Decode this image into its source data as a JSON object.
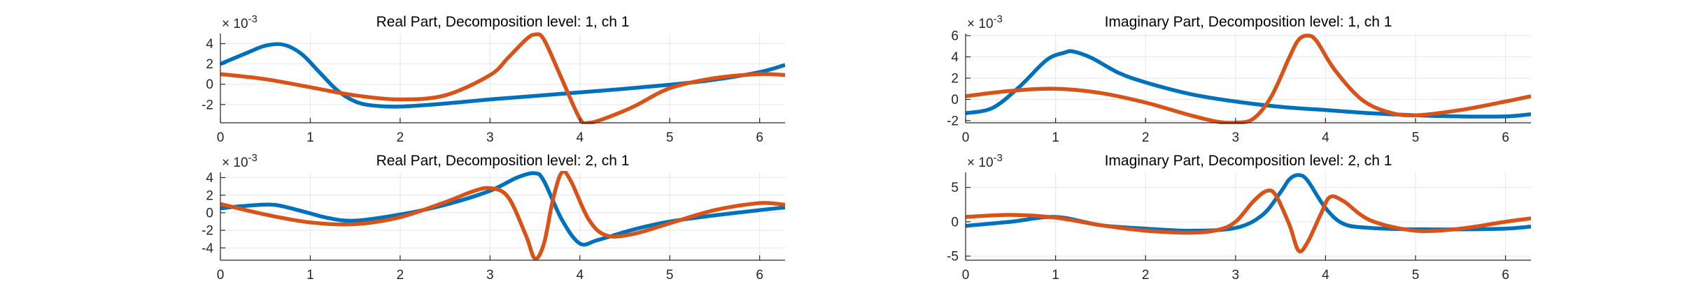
{
  "colors": {
    "series1": "#0072BD",
    "series2": "#D95319",
    "axis": "#262626",
    "grid": "#e6e6e6",
    "background": "#ffffff"
  },
  "chart_data": [
    {
      "type": "line",
      "title": "Real Part, Decomposition level: 1, ch 1",
      "exponent_label": "× 10",
      "exponent_power": "-3",
      "xlim": [
        0,
        6.283
      ],
      "ylim": [
        -3.8,
        5.0
      ],
      "xticks": [
        0,
        1,
        2,
        3,
        4,
        5,
        6
      ],
      "yticks": [
        -2,
        0,
        2,
        4
      ],
      "grid": true,
      "series": [
        {
          "x": [
            0,
            0.3,
            0.5,
            0.7,
            0.9,
            1.1,
            1.3,
            1.5,
            1.7,
            2.0,
            2.5,
            3.0,
            3.5,
            4.0,
            4.5,
            5.0,
            5.5,
            6.0,
            6.283
          ],
          "y": [
            2.0,
            3.1,
            3.8,
            3.9,
            3.0,
            1.2,
            -0.6,
            -1.7,
            -2.1,
            -2.2,
            -1.9,
            -1.5,
            -1.15,
            -0.8,
            -0.45,
            -0.05,
            0.45,
            1.2,
            1.9
          ]
        },
        {
          "x": [
            0,
            0.5,
            1.0,
            1.5,
            2.0,
            2.5,
            3.0,
            3.2,
            3.4,
            3.5,
            3.6,
            3.8,
            4.0,
            4.1,
            4.3,
            4.6,
            5.0,
            5.5,
            6.0,
            6.283
          ],
          "y": [
            1.0,
            0.5,
            -0.3,
            -1.1,
            -1.5,
            -1.1,
            0.9,
            2.6,
            4.4,
            4.9,
            4.4,
            0.5,
            -3.4,
            -3.8,
            -3.3,
            -2.2,
            -0.4,
            0.6,
            1.0,
            0.9
          ]
        }
      ]
    },
    {
      "type": "line",
      "title": "Imaginary Part, Decomposition level: 1, ch 1",
      "exponent_label": "× 10",
      "exponent_power": "-3",
      "xlim": [
        0,
        6.283
      ],
      "ylim": [
        -2.2,
        6.2
      ],
      "xticks": [
        0,
        1,
        2,
        3,
        4,
        5,
        6
      ],
      "yticks": [
        -2,
        0,
        2,
        4,
        6
      ],
      "grid": true,
      "series": [
        {
          "x": [
            0,
            0.3,
            0.6,
            0.9,
            1.1,
            1.2,
            1.4,
            1.7,
            2.0,
            2.5,
            3.0,
            3.5,
            4.0,
            4.5,
            5.0,
            5.5,
            6.0,
            6.283
          ],
          "y": [
            -1.3,
            -0.8,
            1.2,
            3.7,
            4.4,
            4.5,
            3.9,
            2.5,
            1.6,
            0.5,
            -0.2,
            -0.7,
            -1.0,
            -1.3,
            -1.5,
            -1.6,
            -1.6,
            -1.4
          ]
        },
        {
          "x": [
            0,
            0.5,
            1.0,
            1.5,
            2.0,
            2.5,
            2.8,
            3.0,
            3.2,
            3.4,
            3.6,
            3.7,
            3.8,
            3.9,
            4.1,
            4.4,
            4.7,
            5.0,
            5.5,
            6.0,
            6.283
          ],
          "y": [
            0.3,
            0.8,
            1.0,
            0.6,
            -0.3,
            -1.5,
            -2.1,
            -2.2,
            -1.8,
            0.3,
            4.0,
            5.6,
            6.0,
            5.5,
            2.8,
            0.0,
            -1.2,
            -1.5,
            -1.0,
            -0.2,
            0.3
          ]
        }
      ]
    },
    {
      "type": "line",
      "title": "Real Part, Decomposition level: 2, ch 1",
      "exponent_label": "× 10",
      "exponent_power": "-3",
      "xlim": [
        0,
        6.283
      ],
      "ylim": [
        -5.4,
        4.6
      ],
      "xticks": [
        0,
        1,
        2,
        3,
        4,
        5,
        6
      ],
      "yticks": [
        -4,
        -2,
        0,
        2,
        4
      ],
      "grid": true,
      "series": [
        {
          "x": [
            0,
            0.3,
            0.6,
            0.9,
            1.2,
            1.5,
            2.0,
            2.5,
            3.0,
            3.3,
            3.5,
            3.6,
            3.8,
            4.0,
            4.2,
            4.6,
            5.0,
            5.5,
            6.0,
            6.283
          ],
          "y": [
            0.5,
            0.8,
            0.9,
            0.2,
            -0.6,
            -0.9,
            -0.2,
            0.9,
            2.5,
            4.0,
            4.5,
            3.6,
            -0.8,
            -3.5,
            -3.1,
            -1.9,
            -1.0,
            -0.3,
            0.3,
            0.6
          ]
        },
        {
          "x": [
            0,
            0.5,
            1.0,
            1.5,
            2.0,
            2.5,
            2.8,
            3.0,
            3.2,
            3.4,
            3.5,
            3.6,
            3.7,
            3.8,
            3.9,
            4.1,
            4.3,
            4.6,
            5.0,
            5.5,
            6.0,
            6.283
          ],
          "y": [
            1.0,
            -0.2,
            -1.1,
            -1.3,
            -0.5,
            1.2,
            2.4,
            2.8,
            1.8,
            -2.6,
            -5.2,
            -3.5,
            1.5,
            4.6,
            3.6,
            -0.8,
            -2.6,
            -2.4,
            -1.2,
            0.3,
            1.1,
            0.9
          ]
        }
      ]
    },
    {
      "type": "line",
      "title": "Imaginary Part, Decomposition level: 2, ch 1",
      "exponent_label": "× 10",
      "exponent_power": "-3",
      "xlim": [
        0,
        6.283
      ],
      "ylim": [
        -5.6,
        7.2
      ],
      "xticks": [
        0,
        1,
        2,
        3,
        4,
        5,
        6
      ],
      "yticks": [
        -5,
        0,
        5
      ],
      "grid": true,
      "series": [
        {
          "x": [
            0,
            0.5,
            1.0,
            1.5,
            2.0,
            2.5,
            3.0,
            3.3,
            3.5,
            3.6,
            3.7,
            3.8,
            4.0,
            4.2,
            4.5,
            5.0,
            5.5,
            6.0,
            6.283
          ],
          "y": [
            -0.6,
            0.0,
            0.7,
            -0.5,
            -1.0,
            -1.3,
            -0.9,
            1.0,
            4.3,
            6.2,
            6.8,
            6.0,
            2.0,
            -0.3,
            -0.9,
            -1.1,
            -1.1,
            -1.0,
            -0.7
          ]
        },
        {
          "x": [
            0,
            0.5,
            1.0,
            1.5,
            2.0,
            2.5,
            2.8,
            3.0,
            3.2,
            3.35,
            3.45,
            3.6,
            3.7,
            3.8,
            3.95,
            4.05,
            4.2,
            4.5,
            5.0,
            5.5,
            6.0,
            6.283
          ],
          "y": [
            0.7,
            1.0,
            0.6,
            -0.5,
            -1.3,
            -1.6,
            -1.2,
            0.0,
            3.0,
            4.5,
            3.8,
            -0.5,
            -4.2,
            -3.0,
            1.2,
            3.6,
            3.0,
            0.2,
            -1.3,
            -1.0,
            0.0,
            0.5
          ]
        }
      ]
    }
  ]
}
